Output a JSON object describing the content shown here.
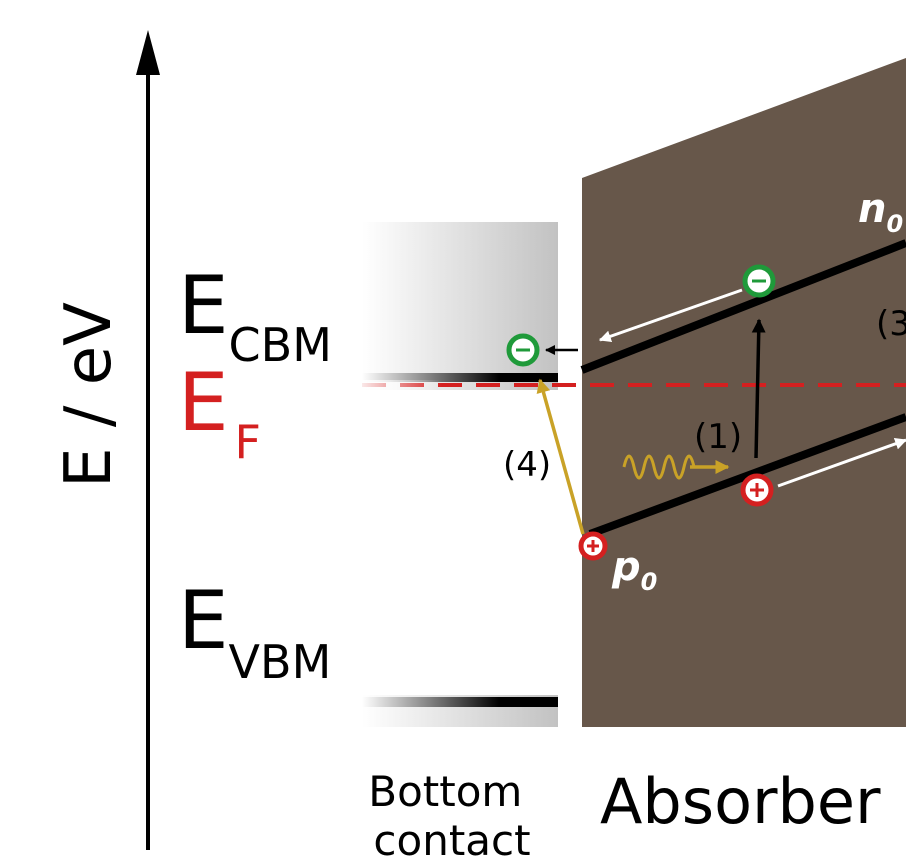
{
  "axis": {
    "label": "E / eV"
  },
  "levels": {
    "cbm": {
      "main": "E",
      "sub": "CBM"
    },
    "ef": {
      "main": "E",
      "sub": "F"
    },
    "vbm": {
      "main": "E",
      "sub": "VBM"
    }
  },
  "regions": {
    "bottom_contact": [
      "Bottom",
      "contact"
    ],
    "absorber": "Absorber"
  },
  "carriers": {
    "n0": {
      "main": "n",
      "sub": "0"
    },
    "p0": {
      "main": "p",
      "sub": "0"
    }
  },
  "process_labels": [
    "(1)",
    "(3",
    "(4)"
  ],
  "colors": {
    "absorber_fill": "#67574a",
    "fermi_level": "#d42020",
    "electron": "#1f9a3a",
    "hole": "#d42020",
    "photon": "#c9a227",
    "band_edge": "#000000"
  }
}
